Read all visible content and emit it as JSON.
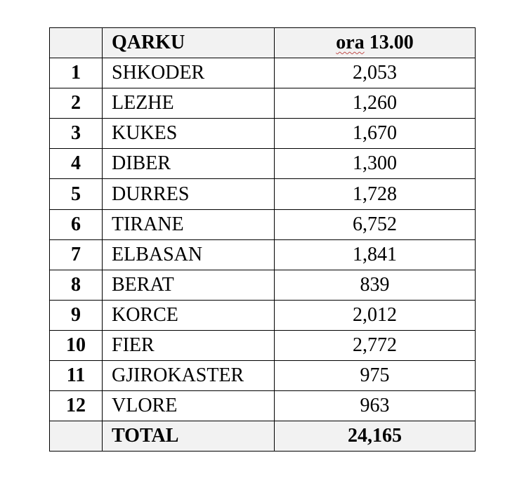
{
  "header": {
    "index": "",
    "name": "QARKU",
    "value_prefix": "ora",
    "value_suffix": " 13.00"
  },
  "rows": [
    {
      "index": "1",
      "name": "SHKODER",
      "value": "2,053"
    },
    {
      "index": "2",
      "name": "LEZHE",
      "value": "1,260"
    },
    {
      "index": "3",
      "name": "KUKES",
      "value": "1,670"
    },
    {
      "index": "4",
      "name": "DIBER",
      "value": "1,300"
    },
    {
      "index": "5",
      "name": "DURRES",
      "value": "1,728"
    },
    {
      "index": "6",
      "name": "TIRANE",
      "value": "6,752"
    },
    {
      "index": "7",
      "name": "ELBASAN",
      "value": "1,841"
    },
    {
      "index": "8",
      "name": "BERAT",
      "value": "839"
    },
    {
      "index": "9",
      "name": "KORCE",
      "value": "2,012"
    },
    {
      "index": "10",
      "name": "FIER",
      "value": "2,772"
    },
    {
      "index": "11",
      "name": "GJIROKASTER",
      "value": "975"
    },
    {
      "index": "12",
      "name": "VLORE",
      "value": "963"
    }
  ],
  "total": {
    "index": "",
    "name": "TOTAL",
    "value": "24,165"
  }
}
